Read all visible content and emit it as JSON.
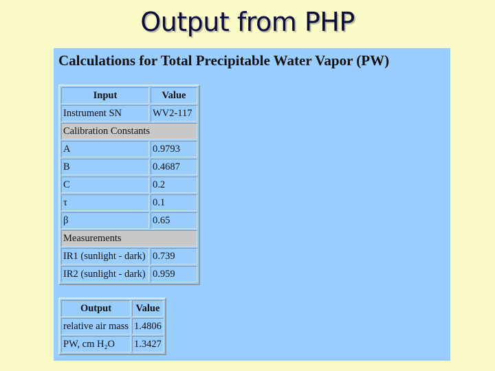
{
  "slide_title": "Output from PHP",
  "heading": "Calculations for Total Precipitable Water Vapor (PW)",
  "input_table": {
    "headers": [
      "Input",
      "Value"
    ],
    "rows": [
      [
        "Instrument SN",
        "WV2-117"
      ],
      [
        "Calibration Constants"
      ],
      [
        "A",
        "0.9793"
      ],
      [
        "B",
        "0.4687"
      ],
      [
        "C",
        "0.2"
      ],
      [
        "τ",
        "0.1"
      ],
      [
        "β",
        "0.65"
      ],
      [
        "Measurements"
      ],
      [
        "IR1 (sunlight - dark)",
        "0.739"
      ],
      [
        "IR2 (sunlight - dark)",
        "0.959"
      ]
    ]
  },
  "output_table": {
    "headers": [
      "Output",
      "Value"
    ],
    "rows": [
      [
        "relative air mass",
        "1.4806"
      ],
      [
        "PW, cm H₂O",
        "1.3427"
      ]
    ]
  }
}
